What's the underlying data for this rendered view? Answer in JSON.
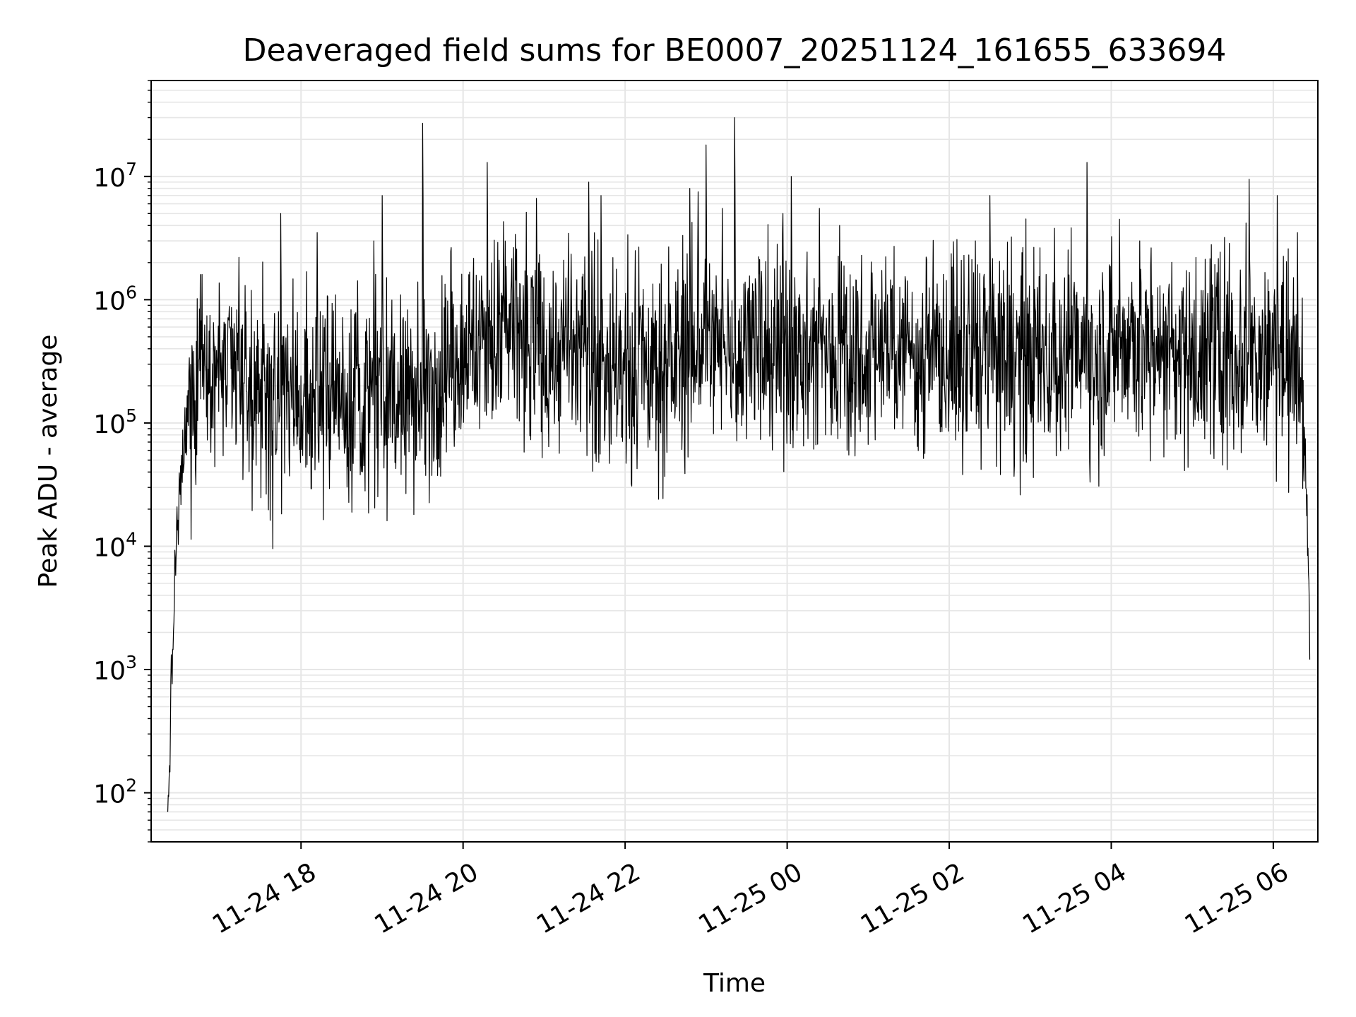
{
  "chart_data": {
    "type": "line",
    "title": "Deaveraged field sums for BE0007_20251124_161655_633694",
    "xlabel": "Time",
    "ylabel": "Peak ADU - average",
    "yscale": "log",
    "ylim": [
      40,
      60000000
    ],
    "xlim": [
      "11-24 16:15",
      "11-25 06:30"
    ],
    "x_tick_labels": [
      "11-24 18",
      "11-24 20",
      "11-24 22",
      "11-25 00",
      "11-25 02",
      "11-25 04",
      "11-25 06"
    ],
    "x_tick_hours": [
      18,
      20,
      22,
      24,
      26,
      28,
      30
    ],
    "y_tick_labels": [
      {
        "base": "10",
        "exp": "2",
        "value": 100
      },
      {
        "base": "10",
        "exp": "3",
        "value": 1000
      },
      {
        "base": "10",
        "exp": "4",
        "value": 10000
      },
      {
        "base": "10",
        "exp": "5",
        "value": 100000
      },
      {
        "base": "10",
        "exp": "6",
        "value": 1000000
      },
      {
        "base": "10",
        "exp": "7",
        "value": 10000000
      }
    ],
    "grid": true,
    "line_color": "#000000",
    "grid_color": "#e6e6e6",
    "series": [
      {
        "name": "Peak ADU - average",
        "start_hour": 16.35,
        "end_hour": 30.45,
        "envelope": [
          {
            "x": 16.35,
            "y": 50
          },
          {
            "x": 16.45,
            "y": 8000
          },
          {
            "x": 16.55,
            "y": 60000
          },
          {
            "x": 16.75,
            "y": 400000
          },
          {
            "x": 17.0,
            "y": 300000
          },
          {
            "x": 17.5,
            "y": 150000
          },
          {
            "x": 18.0,
            "y": 180000
          },
          {
            "x": 18.5,
            "y": 160000
          },
          {
            "x": 19.0,
            "y": 150000
          },
          {
            "x": 19.5,
            "y": 170000
          },
          {
            "x": 20.0,
            "y": 400000
          },
          {
            "x": 20.5,
            "y": 450000
          },
          {
            "x": 21.0,
            "y": 400000
          },
          {
            "x": 21.5,
            "y": 350000
          },
          {
            "x": 22.0,
            "y": 250000
          },
          {
            "x": 22.5,
            "y": 300000
          },
          {
            "x": 23.0,
            "y": 450000
          },
          {
            "x": 23.5,
            "y": 400000
          },
          {
            "x": 24.0,
            "y": 350000
          },
          {
            "x": 25.0,
            "y": 400000
          },
          {
            "x": 26.0,
            "y": 350000
          },
          {
            "x": 27.0,
            "y": 350000
          },
          {
            "x": 28.0,
            "y": 400000
          },
          {
            "x": 29.0,
            "y": 380000
          },
          {
            "x": 30.0,
            "y": 350000
          },
          {
            "x": 30.35,
            "y": 200000
          },
          {
            "x": 30.42,
            "y": 15000
          },
          {
            "x": 30.45,
            "y": 2000
          }
        ],
        "peaks": [
          {
            "x": 17.75,
            "y": 5000000
          },
          {
            "x": 18.2,
            "y": 3500000
          },
          {
            "x": 18.9,
            "y": 3000000
          },
          {
            "x": 19.0,
            "y": 7000000
          },
          {
            "x": 19.5,
            "y": 27000000
          },
          {
            "x": 20.3,
            "y": 13000000
          },
          {
            "x": 20.5,
            "y": 4300000
          },
          {
            "x": 21.55,
            "y": 9000000
          },
          {
            "x": 21.7,
            "y": 7000000
          },
          {
            "x": 22.8,
            "y": 8000000
          },
          {
            "x": 22.9,
            "y": 7500000
          },
          {
            "x": 23.0,
            "y": 18000000
          },
          {
            "x": 23.2,
            "y": 5500000
          },
          {
            "x": 23.35,
            "y": 30000000
          },
          {
            "x": 23.95,
            "y": 5000000
          },
          {
            "x": 24.05,
            "y": 10000000
          },
          {
            "x": 24.4,
            "y": 5500000
          },
          {
            "x": 24.65,
            "y": 4000000
          },
          {
            "x": 25.3,
            "y": 1300000
          },
          {
            "x": 26.5,
            "y": 7000000
          },
          {
            "x": 27.3,
            "y": 3800000
          },
          {
            "x": 27.7,
            "y": 13000000
          },
          {
            "x": 28.1,
            "y": 4500000
          },
          {
            "x": 28.35,
            "y": 3000000
          },
          {
            "x": 29.4,
            "y": 3200000
          },
          {
            "x": 29.7,
            "y": 9500000
          },
          {
            "x": 30.05,
            "y": 7000000
          },
          {
            "x": 30.3,
            "y": 3500000
          }
        ]
      }
    ]
  }
}
